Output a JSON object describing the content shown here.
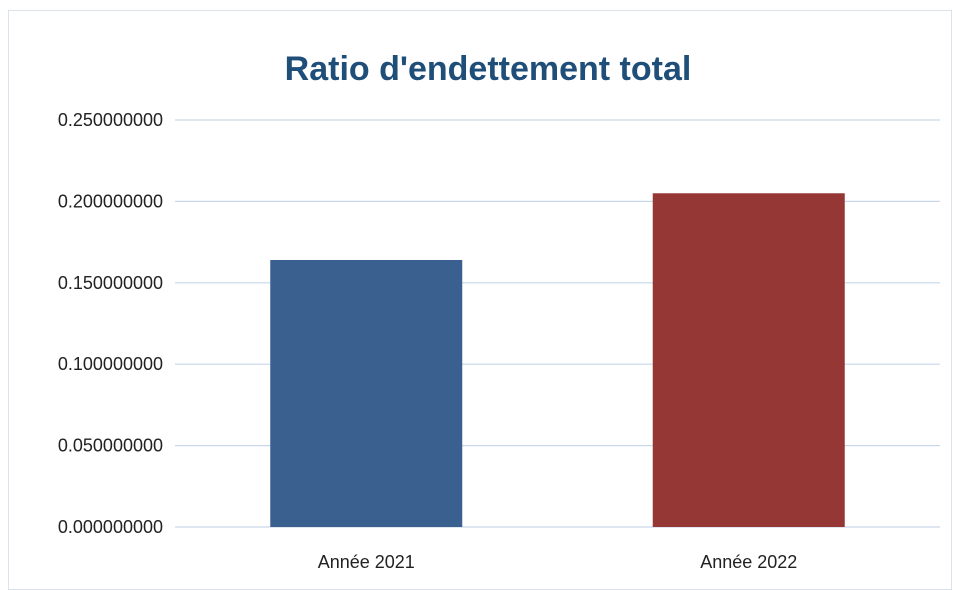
{
  "chart_data": {
    "type": "bar",
    "title": "Ratio d'endettement total",
    "categories": [
      "Année 2021",
      "Année 2022"
    ],
    "values": [
      0.164,
      0.205
    ],
    "bar_colors": [
      "#3a6090",
      "#953735"
    ],
    "ylim": [
      0,
      0.25
    ],
    "yticks": [
      0,
      0.05,
      0.1,
      0.15,
      0.2,
      0.25
    ],
    "ytick_labels": [
      "0.000000000",
      "0.050000000",
      "0.100000000",
      "0.150000000",
      "0.200000000",
      "0.250000000"
    ],
    "grid": true,
    "legend": false,
    "colors": {
      "title": "#1f4e79",
      "gridline": "#c9d7ea",
      "frame": "#dbe2ec"
    }
  }
}
